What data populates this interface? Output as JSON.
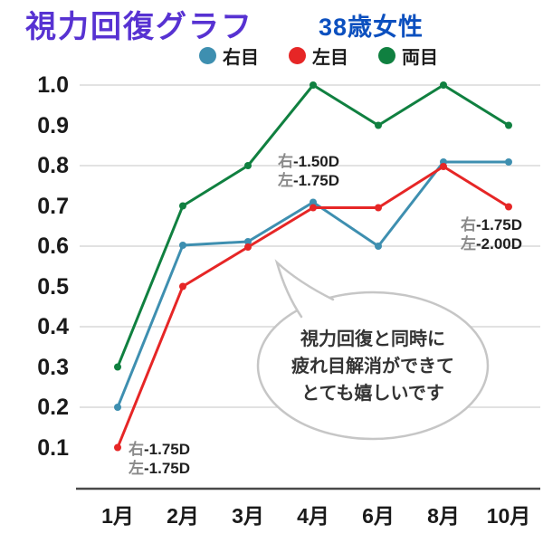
{
  "page": {
    "title": "視力回復グラフ",
    "subtitle": "38歳女性"
  },
  "chart_data": {
    "type": "line",
    "title": "視力回復グラフ",
    "subtitle": "38歳女性",
    "categories": [
      "1月",
      "2月",
      "3月",
      "4月",
      "6月",
      "8月",
      "10月"
    ],
    "series": [
      {
        "name": "右目",
        "color": "#3e8fb0",
        "values": [
          0.2,
          0.6,
          0.6,
          0.7,
          0.6,
          0.8,
          0.8
        ]
      },
      {
        "name": "左目",
        "color": "#e62626",
        "values": [
          0.1,
          0.5,
          0.6,
          0.7,
          0.7,
          0.8,
          0.7
        ]
      },
      {
        "name": "両目",
        "color": "#108040",
        "values": [
          0.3,
          0.7,
          0.8,
          1.0,
          0.9,
          1.0,
          0.9
        ]
      }
    ],
    "yticks": [
      "1.0",
      "0.9",
      "0.8",
      "0.7",
      "0.6",
      "0.5",
      "0.4",
      "0.3",
      "0.2",
      "0.1"
    ],
    "ytick_values": [
      1.0,
      0.9,
      0.8,
      0.7,
      0.6,
      0.5,
      0.4,
      0.3,
      0.2,
      0.1
    ],
    "gridline_values": [
      1.0,
      0.8,
      0.6,
      0.4,
      0.2
    ],
    "ylim": [
      0,
      1.05
    ],
    "grid": "horizontal",
    "legend_position": "top"
  },
  "annotations": {
    "jan": {
      "line1": {
        "eye": "右",
        "value": "-1.75D"
      },
      "line2": {
        "eye": "左",
        "value": "-1.75D"
      }
    },
    "apr": {
      "line1": {
        "eye": "右",
        "value": "-1.50D"
      },
      "line2": {
        "eye": "左",
        "value": "-1.75D"
      }
    },
    "oct": {
      "line1": {
        "eye": "右",
        "value": "-1.75D"
      },
      "line2": {
        "eye": "左",
        "value": "-2.00D"
      }
    }
  },
  "bubble": {
    "line1": "視力回復と同時に",
    "line2": "疲れ目解消ができて",
    "line3": "とても嬉しいです"
  },
  "colors": {
    "title": "#5732d2",
    "subtitle": "#0c50bf",
    "grid": "#d9d9d9",
    "axis": "#4a4a4a",
    "bubble_border": "#c6c6c6"
  }
}
